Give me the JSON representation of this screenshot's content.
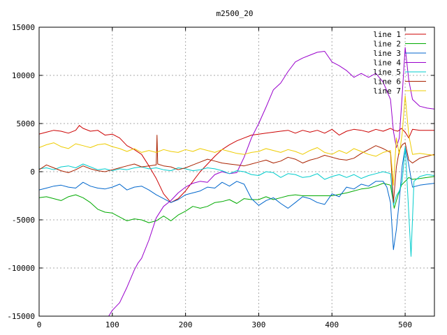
{
  "chart_data": {
    "type": "line",
    "title": "m2500_20",
    "xlabel": "",
    "ylabel": "",
    "xlim": [
      0,
      540
    ],
    "ylim": [
      -15000,
      15000
    ],
    "xticks": [
      0,
      100,
      200,
      300,
      400,
      500
    ],
    "yticks": [
      -15000,
      -10000,
      -5000,
      0,
      5000,
      10000,
      15000
    ],
    "grid": true,
    "legend_position": "top-right",
    "series": [
      {
        "name": "line 1",
        "color": "#cc0000",
        "x": [
          0,
          10,
          20,
          30,
          40,
          50,
          55,
          60,
          70,
          80,
          90,
          100,
          110,
          120,
          130,
          140,
          150,
          160,
          170,
          180,
          190,
          200,
          210,
          220,
          230,
          240,
          250,
          260,
          270,
          280,
          290,
          300,
          310,
          320,
          330,
          340,
          350,
          360,
          370,
          380,
          390,
          400,
          410,
          420,
          430,
          440,
          450,
          460,
          470,
          480,
          485,
          490,
          495,
          500,
          505,
          510,
          520,
          530,
          540
        ],
        "values": [
          3900,
          4100,
          4300,
          4200,
          4000,
          4300,
          4800,
          4500,
          4200,
          4300,
          3800,
          3900,
          3500,
          2700,
          2300,
          1800,
          600,
          -700,
          -2300,
          -3200,
          -2800,
          -2000,
          -1000,
          0,
          800,
          1600,
          2300,
          2800,
          3200,
          3500,
          3800,
          3900,
          4000,
          4100,
          4200,
          4300,
          4000,
          4300,
          4100,
          4300,
          4000,
          4400,
          3800,
          4200,
          4400,
          4300,
          4100,
          4400,
          4200,
          4500,
          4300,
          4200,
          4500,
          4100,
          3500,
          4400,
          4300,
          4300,
          4300
        ]
      },
      {
        "name": "line 2",
        "color": "#00aa00",
        "x": [
          0,
          10,
          20,
          30,
          40,
          50,
          60,
          70,
          80,
          90,
          100,
          110,
          120,
          130,
          140,
          150,
          160,
          170,
          180,
          190,
          200,
          210,
          220,
          230,
          240,
          250,
          260,
          270,
          280,
          290,
          300,
          310,
          320,
          330,
          340,
          350,
          360,
          400,
          420,
          430,
          440,
          450,
          460,
          470,
          480,
          485,
          490,
          495,
          500,
          505,
          510,
          520,
          530,
          540
        ],
        "values": [
          -2700,
          -2600,
          -2800,
          -3000,
          -2600,
          -2400,
          -2700,
          -3200,
          -3900,
          -4200,
          -4300,
          -4700,
          -5100,
          -4900,
          -5000,
          -5300,
          -5100,
          -4600,
          -5100,
          -4500,
          -4100,
          -3600,
          -3800,
          -3600,
          -3200,
          -3100,
          -2900,
          -3300,
          -2800,
          -2900,
          -2900,
          -2600,
          -2900,
          -2700,
          -2500,
          -2400,
          -2500,
          -2500,
          -2200,
          -2000,
          -1800,
          -1700,
          -1500,
          -1200,
          -1400,
          -3800,
          -2500,
          -1400,
          -1000,
          -600,
          -800,
          -700,
          -600,
          -500
        ]
      },
      {
        "name": "line 3",
        "color": "#0066cc",
        "x": [
          0,
          10,
          20,
          30,
          40,
          50,
          60,
          70,
          80,
          90,
          100,
          110,
          120,
          130,
          140,
          150,
          160,
          170,
          180,
          190,
          200,
          210,
          220,
          230,
          240,
          250,
          260,
          270,
          280,
          290,
          300,
          310,
          320,
          330,
          340,
          350,
          360,
          370,
          380,
          390,
          400,
          410,
          420,
          430,
          440,
          450,
          460,
          470,
          475,
          480,
          484,
          488,
          492,
          496,
          500,
          505,
          510,
          520,
          530,
          540
        ],
        "values": [
          -1900,
          -1700,
          -1500,
          -1400,
          -1600,
          -1700,
          -1100,
          -1500,
          -1700,
          -1800,
          -1600,
          -1300,
          -1900,
          -1600,
          -1500,
          -1900,
          -2400,
          -2800,
          -3200,
          -2900,
          -2400,
          -2200,
          -2000,
          -1600,
          -1700,
          -1100,
          -1500,
          -1000,
          -1300,
          -2800,
          -3500,
          -3000,
          -2700,
          -3300,
          -3800,
          -3200,
          -2600,
          -2800,
          -3200,
          -3400,
          -2300,
          -2600,
          -1600,
          -1800,
          -1300,
          -1500,
          -1000,
          -1000,
          -1600,
          -3200,
          -8100,
          -6000,
          -3000,
          600,
          2500,
          700,
          -1600,
          -1400,
          -1300,
          -1200
        ]
      },
      {
        "name": "line 4",
        "color": "#9900cc",
        "x": [
          95,
          100,
          110,
          120,
          130,
          135,
          140,
          150,
          160,
          170,
          180,
          190,
          200,
          210,
          220,
          230,
          240,
          250,
          260,
          270,
          280,
          290,
          300,
          310,
          320,
          330,
          340,
          350,
          360,
          370,
          380,
          390,
          400,
          410,
          420,
          430,
          440,
          450,
          460,
          470,
          480,
          484,
          488,
          492,
          496,
          500,
          505,
          510,
          520,
          530,
          540
        ],
        "values": [
          -15000,
          -14400,
          -13600,
          -12000,
          -10200,
          -9500,
          -9000,
          -7100,
          -4800,
          -3600,
          -3000,
          -2200,
          -1600,
          -1200,
          -1000,
          -1100,
          -300,
          0,
          -200,
          -100,
          1500,
          3500,
          5000,
          6700,
          8500,
          9200,
          10400,
          11400,
          11800,
          12100,
          12400,
          12500,
          11400,
          11000,
          10500,
          9800,
          10200,
          9800,
          10200,
          9300,
          7500,
          4200,
          2500,
          3500,
          8000,
          12900,
          9500,
          7500,
          6800,
          6600,
          6500
        ]
      },
      {
        "name": "line 5",
        "color": "#00cccc",
        "x": [
          0,
          10,
          20,
          30,
          40,
          50,
          60,
          70,
          80,
          90,
          100,
          110,
          120,
          130,
          140,
          150,
          160,
          170,
          180,
          190,
          200,
          210,
          220,
          230,
          240,
          250,
          260,
          270,
          280,
          290,
          300,
          310,
          320,
          330,
          340,
          350,
          360,
          370,
          380,
          390,
          400,
          410,
          420,
          430,
          440,
          450,
          460,
          470,
          480,
          484,
          488,
          492,
          496,
          500,
          504,
          508,
          512,
          520,
          530,
          540
        ],
        "values": [
          300,
          400,
          200,
          500,
          600,
          400,
          800,
          500,
          200,
          300,
          100,
          300,
          200,
          400,
          500,
          300,
          400,
          200,
          100,
          400,
          300,
          100,
          200,
          400,
          300,
          100,
          -200,
          100,
          0,
          -300,
          -400,
          0,
          -100,
          -600,
          -200,
          -300,
          -600,
          -500,
          -200,
          -800,
          -500,
          -300,
          -600,
          -300,
          -700,
          -400,
          -200,
          0,
          -200,
          -3500,
          -2500,
          -2000,
          -1000,
          2600,
          -3000,
          -8800,
          -1000,
          -500,
          -300,
          -400
        ]
      },
      {
        "name": "line 6",
        "color": "#aa2200",
        "x": [
          0,
          10,
          20,
          30,
          40,
          50,
          60,
          70,
          80,
          90,
          100,
          110,
          120,
          130,
          140,
          150,
          160,
          161,
          162,
          170,
          180,
          190,
          200,
          210,
          220,
          230,
          240,
          250,
          260,
          270,
          280,
          290,
          300,
          310,
          320,
          330,
          340,
          350,
          360,
          370,
          380,
          390,
          400,
          410,
          420,
          430,
          440,
          450,
          460,
          470,
          480,
          484,
          488,
          492,
          496,
          500,
          505,
          510,
          520,
          530,
          540
        ],
        "values": [
          200,
          700,
          400,
          100,
          -100,
          200,
          600,
          300,
          100,
          0,
          200,
          400,
          600,
          800,
          500,
          600,
          700,
          3800,
          800,
          600,
          500,
          200,
          400,
          700,
          1000,
          1300,
          1100,
          900,
          800,
          700,
          600,
          800,
          1000,
          1200,
          900,
          1100,
          1500,
          1300,
          900,
          1200,
          1400,
          1700,
          1500,
          1300,
          1200,
          1400,
          1900,
          2300,
          2700,
          2400,
          2000,
          -3200,
          500,
          2200,
          2800,
          3000,
          1200,
          900,
          1400,
          1600,
          1800
        ]
      },
      {
        "name": "line 7",
        "color": "#eecc00",
        "x": [
          0,
          10,
          20,
          30,
          40,
          50,
          60,
          70,
          80,
          90,
          100,
          110,
          120,
          130,
          140,
          150,
          160,
          170,
          180,
          190,
          200,
          210,
          220,
          230,
          240,
          250,
          260,
          270,
          280,
          290,
          300,
          310,
          320,
          330,
          340,
          350,
          360,
          370,
          380,
          390,
          400,
          410,
          420,
          430,
          440,
          450,
          460,
          470,
          480,
          484,
          488,
          492,
          496,
          500,
          505,
          510,
          520,
          530,
          540
        ],
        "values": [
          2500,
          2800,
          3000,
          2600,
          2400,
          2900,
          2700,
          2500,
          2800,
          2900,
          2600,
          2400,
          2100,
          2400,
          2000,
          2200,
          2000,
          2300,
          2100,
          2000,
          2300,
          2100,
          2400,
          2200,
          2000,
          2300,
          2100,
          1900,
          1800,
          2000,
          2100,
          2400,
          2200,
          2000,
          2300,
          2100,
          1800,
          2200,
          2500,
          2000,
          1800,
          2200,
          1900,
          2400,
          2100,
          1800,
          1600,
          2000,
          2200,
          -1400,
          3500,
          1800,
          4000,
          7900,
          3800,
          1800,
          1900,
          1800,
          1700
        ]
      }
    ]
  }
}
